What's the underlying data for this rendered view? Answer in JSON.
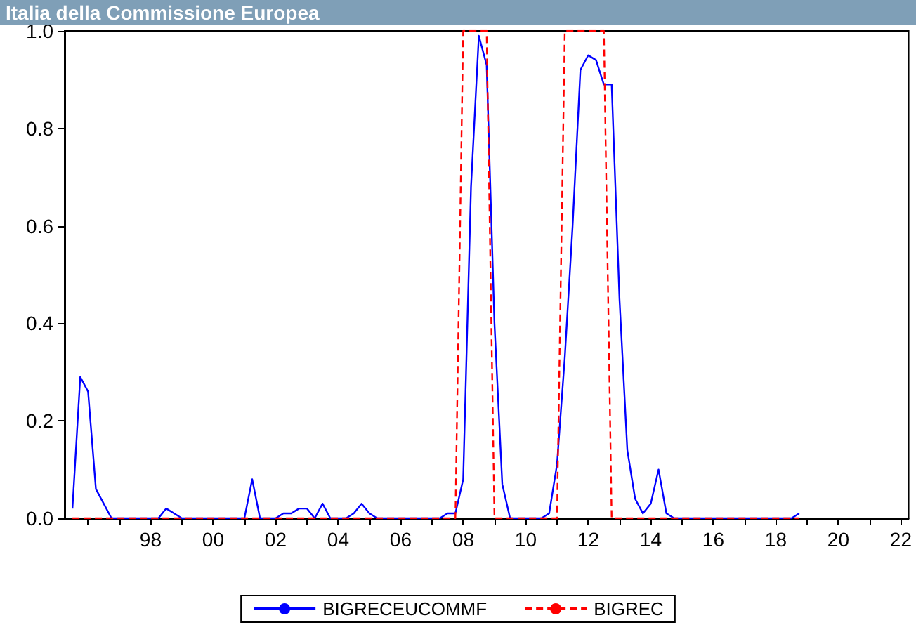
{
  "chart_data": {
    "type": "line",
    "title": "Italia della Commissione Europea",
    "x": [
      1995.5,
      1995.75,
      1996,
      1996.25,
      1996.5,
      1996.75,
      1997,
      1997.25,
      1997.5,
      1997.75,
      1998,
      1998.25,
      1998.5,
      1998.75,
      1999,
      1999.25,
      1999.5,
      1999.75,
      2000,
      2000.25,
      2000.5,
      2000.75,
      2001,
      2001.25,
      2001.5,
      2001.75,
      2002,
      2002.25,
      2002.5,
      2002.75,
      2003,
      2003.25,
      2003.5,
      2003.75,
      2004,
      2004.25,
      2004.5,
      2004.75,
      2005,
      2005.25,
      2005.5,
      2005.75,
      2006,
      2006.25,
      2006.5,
      2006.75,
      2007,
      2007.25,
      2007.5,
      2007.75,
      2008,
      2008.25,
      2008.5,
      2008.75,
      2009,
      2009.25,
      2009.5,
      2009.75,
      2010,
      2010.25,
      2010.5,
      2010.75,
      2011,
      2011.25,
      2011.5,
      2011.75,
      2012,
      2012.25,
      2012.5,
      2012.75,
      2013,
      2013.25,
      2013.5,
      2013.75,
      2014,
      2014.25,
      2014.5,
      2014.75,
      2015,
      2015.25,
      2015.5,
      2015.75,
      2016,
      2016.25,
      2016.5,
      2016.75,
      2017,
      2017.25,
      2017.5,
      2017.75,
      2018,
      2018.25,
      2018.5,
      2018.75
    ],
    "series": [
      {
        "name": "BIGRECEUCOMMF",
        "color": "#0000ff",
        "line_style": "solid",
        "values": [
          0.02,
          0.29,
          0.26,
          0.06,
          0.03,
          0,
          0,
          0,
          0,
          0,
          0,
          0,
          0.02,
          0.01,
          0,
          0,
          0,
          0,
          0,
          0,
          0,
          0,
          0,
          0.08,
          0,
          0,
          0,
          0.01,
          0.01,
          0.02,
          0.02,
          0,
          0.03,
          0,
          0,
          0,
          0.01,
          0.03,
          0.01,
          0,
          0,
          0,
          0,
          0,
          0,
          0,
          0,
          0,
          0.01,
          0.01,
          0.08,
          0.68,
          0.99,
          0.93,
          0.4,
          0.07,
          0,
          0,
          0,
          0,
          0,
          0.01,
          0.11,
          0.33,
          0.6,
          0.92,
          0.95,
          0.94,
          0.89,
          0.89,
          0.45,
          0.14,
          0.04,
          0.01,
          0.03,
          0.1,
          0.01,
          0,
          0,
          0,
          0,
          0,
          0,
          0,
          0,
          0,
          0,
          0,
          0,
          0,
          0,
          0,
          0,
          0.01
        ]
      },
      {
        "name": "BIGREC",
        "color": "#ff0000",
        "line_style": "dashed",
        "values": [
          0,
          0,
          0,
          0,
          0,
          0,
          0,
          0,
          0,
          0,
          0,
          0,
          0,
          0,
          0,
          0,
          0,
          0,
          0,
          0,
          0,
          0,
          0,
          0,
          0,
          0,
          0,
          0,
          0,
          0,
          0,
          0,
          0,
          0,
          0,
          0,
          0,
          0,
          0,
          0,
          0,
          0,
          0,
          0,
          0,
          0,
          0,
          0,
          0,
          0,
          1,
          1,
          1,
          1,
          0,
          0,
          0,
          0,
          0,
          0,
          0,
          0,
          0,
          1,
          1,
          1,
          1,
          1,
          1,
          0,
          0,
          0,
          0,
          0,
          0,
          0,
          0,
          0,
          0,
          0,
          0,
          0,
          0,
          0,
          0,
          0,
          0,
          0,
          0,
          0,
          0,
          0,
          0,
          0
        ]
      }
    ],
    "xlim": [
      1995.25,
      2022.25
    ],
    "xticks": [
      {
        "value": 1996,
        "label": null
      },
      {
        "value": 1997,
        "label": null
      },
      {
        "value": 1998,
        "label": "98"
      },
      {
        "value": 1999,
        "label": null
      },
      {
        "value": 2000,
        "label": "00"
      },
      {
        "value": 2001,
        "label": null
      },
      {
        "value": 2002,
        "label": "02"
      },
      {
        "value": 2003,
        "label": null
      },
      {
        "value": 2004,
        "label": "04"
      },
      {
        "value": 2005,
        "label": null
      },
      {
        "value": 2006,
        "label": "06"
      },
      {
        "value": 2007,
        "label": null
      },
      {
        "value": 2008,
        "label": "08"
      },
      {
        "value": 2009,
        "label": null
      },
      {
        "value": 2010,
        "label": "10"
      },
      {
        "value": 2011,
        "label": null
      },
      {
        "value": 2012,
        "label": "12"
      },
      {
        "value": 2013,
        "label": null
      },
      {
        "value": 2014,
        "label": "14"
      },
      {
        "value": 2015,
        "label": null
      },
      {
        "value": 2016,
        "label": "16"
      },
      {
        "value": 2017,
        "label": null
      },
      {
        "value": 2018,
        "label": "18"
      },
      {
        "value": 2019,
        "label": null
      },
      {
        "value": 2020,
        "label": "20"
      },
      {
        "value": 2021,
        "label": null
      },
      {
        "value": 2022,
        "label": "22"
      }
    ],
    "ylim": [
      0,
      1
    ],
    "yticks": [
      {
        "value": 0,
        "label": "0.0"
      },
      {
        "value": 0.2,
        "label": "0.2"
      },
      {
        "value": 0.4,
        "label": "0.4"
      },
      {
        "value": 0.6,
        "label": "0.6"
      },
      {
        "value": 0.8,
        "label": "0.8"
      },
      {
        "value": 1,
        "label": "1.0"
      }
    ],
    "grid": false,
    "legend": "bottom"
  }
}
